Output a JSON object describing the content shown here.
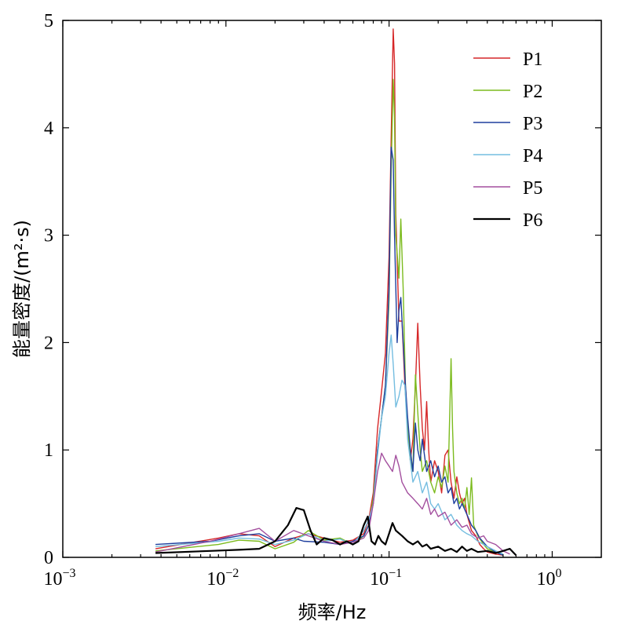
{
  "chart_data": {
    "type": "line",
    "title": "",
    "xlabel": "频率/Hz",
    "ylabel": "能量密度/(m²·s)",
    "xscale": "log",
    "xlim": [
      0.001,
      2
    ],
    "ylim": [
      0,
      5
    ],
    "xticks": [
      {
        "value": 0.001,
        "base": "10",
        "exp": "−3"
      },
      {
        "value": 0.01,
        "base": "10",
        "exp": "−2"
      },
      {
        "value": 0.1,
        "base": "10",
        "exp": "−1"
      },
      {
        "value": 1,
        "base": "10",
        "exp": "0"
      }
    ],
    "yticks": [
      0,
      1,
      2,
      3,
      4,
      5
    ],
    "grid": false,
    "legend_position": "top-right",
    "series": [
      {
        "name": "P1",
        "color": "#d62728",
        "points": [
          [
            0.0037,
            0.08
          ],
          [
            0.009,
            0.18
          ],
          [
            0.012,
            0.22
          ],
          [
            0.016,
            0.2
          ],
          [
            0.02,
            0.1
          ],
          [
            0.026,
            0.18
          ],
          [
            0.032,
            0.22
          ],
          [
            0.04,
            0.18
          ],
          [
            0.05,
            0.14
          ],
          [
            0.06,
            0.16
          ],
          [
            0.07,
            0.22
          ],
          [
            0.075,
            0.35
          ],
          [
            0.08,
            0.6
          ],
          [
            0.085,
            1.2
          ],
          [
            0.09,
            1.55
          ],
          [
            0.095,
            1.9
          ],
          [
            0.1,
            2.8
          ],
          [
            0.103,
            3.9
          ],
          [
            0.106,
            4.92
          ],
          [
            0.108,
            4.6
          ],
          [
            0.11,
            3.2
          ],
          [
            0.115,
            2.2
          ],
          [
            0.12,
            2.2
          ],
          [
            0.125,
            1.6
          ],
          [
            0.13,
            1.2
          ],
          [
            0.135,
            0.9
          ],
          [
            0.14,
            1.1
          ],
          [
            0.145,
            1.6
          ],
          [
            0.15,
            2.18
          ],
          [
            0.155,
            1.6
          ],
          [
            0.16,
            1.2
          ],
          [
            0.165,
            1.0
          ],
          [
            0.17,
            1.45
          ],
          [
            0.175,
            1.0
          ],
          [
            0.18,
            0.7
          ],
          [
            0.19,
            0.9
          ],
          [
            0.2,
            0.8
          ],
          [
            0.21,
            0.6
          ],
          [
            0.22,
            0.95
          ],
          [
            0.23,
            1.0
          ],
          [
            0.24,
            0.7
          ],
          [
            0.25,
            0.55
          ],
          [
            0.26,
            0.75
          ],
          [
            0.27,
            0.6
          ],
          [
            0.28,
            0.5
          ],
          [
            0.29,
            0.55
          ],
          [
            0.3,
            0.4
          ],
          [
            0.32,
            0.25
          ],
          [
            0.34,
            0.2
          ],
          [
            0.36,
            0.12
          ],
          [
            0.38,
            0.08
          ],
          [
            0.4,
            0.05
          ],
          [
            0.45,
            0.03
          ],
          [
            0.5,
            0.02
          ]
        ]
      },
      {
        "name": "P2",
        "color": "#7cbb1e",
        "points": [
          [
            0.0037,
            0.06
          ],
          [
            0.009,
            0.12
          ],
          [
            0.012,
            0.16
          ],
          [
            0.016,
            0.15
          ],
          [
            0.02,
            0.08
          ],
          [
            0.026,
            0.14
          ],
          [
            0.032,
            0.25
          ],
          [
            0.04,
            0.16
          ],
          [
            0.05,
            0.18
          ],
          [
            0.06,
            0.12
          ],
          [
            0.07,
            0.2
          ],
          [
            0.075,
            0.3
          ],
          [
            0.08,
            0.55
          ],
          [
            0.085,
            1.0
          ],
          [
            0.09,
            1.3
          ],
          [
            0.095,
            1.6
          ],
          [
            0.1,
            2.4
          ],
          [
            0.103,
            3.6
          ],
          [
            0.106,
            4.45
          ],
          [
            0.108,
            4.1
          ],
          [
            0.11,
            3.0
          ],
          [
            0.115,
            2.6
          ],
          [
            0.118,
            3.15
          ],
          [
            0.122,
            2.5
          ],
          [
            0.126,
            1.6
          ],
          [
            0.13,
            1.2
          ],
          [
            0.135,
            0.9
          ],
          [
            0.14,
            0.8
          ],
          [
            0.145,
            1.7
          ],
          [
            0.15,
            1.35
          ],
          [
            0.155,
            1.0
          ],
          [
            0.16,
            0.8
          ],
          [
            0.17,
            0.9
          ],
          [
            0.18,
            0.7
          ],
          [
            0.19,
            0.6
          ],
          [
            0.2,
            0.75
          ],
          [
            0.21,
            0.65
          ],
          [
            0.22,
            0.85
          ],
          [
            0.23,
            0.7
          ],
          [
            0.24,
            1.85
          ],
          [
            0.245,
            1.2
          ],
          [
            0.25,
            0.8
          ],
          [
            0.26,
            0.6
          ],
          [
            0.27,
            0.5
          ],
          [
            0.28,
            0.55
          ],
          [
            0.29,
            0.45
          ],
          [
            0.3,
            0.65
          ],
          [
            0.31,
            0.4
          ],
          [
            0.32,
            0.74
          ],
          [
            0.33,
            0.3
          ],
          [
            0.35,
            0.2
          ],
          [
            0.38,
            0.12
          ],
          [
            0.4,
            0.08
          ],
          [
            0.45,
            0.05
          ],
          [
            0.5,
            0.02
          ]
        ]
      },
      {
        "name": "P3",
        "color": "#1f3f9e",
        "points": [
          [
            0.0037,
            0.12
          ],
          [
            0.008,
            0.15
          ],
          [
            0.012,
            0.2
          ],
          [
            0.016,
            0.22
          ],
          [
            0.02,
            0.15
          ],
          [
            0.026,
            0.18
          ],
          [
            0.03,
            0.15
          ],
          [
            0.04,
            0.14
          ],
          [
            0.05,
            0.12
          ],
          [
            0.06,
            0.15
          ],
          [
            0.07,
            0.2
          ],
          [
            0.075,
            0.3
          ],
          [
            0.08,
            0.5
          ],
          [
            0.085,
            1.0
          ],
          [
            0.09,
            1.3
          ],
          [
            0.095,
            1.6
          ],
          [
            0.1,
            2.5
          ],
          [
            0.103,
            3.82
          ],
          [
            0.106,
            3.7
          ],
          [
            0.108,
            3.0
          ],
          [
            0.112,
            2.0
          ],
          [
            0.115,
            2.3
          ],
          [
            0.118,
            2.42
          ],
          [
            0.122,
            2.0
          ],
          [
            0.126,
            1.6
          ],
          [
            0.13,
            1.3
          ],
          [
            0.135,
            1.0
          ],
          [
            0.14,
            0.8
          ],
          [
            0.145,
            1.25
          ],
          [
            0.15,
            1.0
          ],
          [
            0.155,
            0.9
          ],
          [
            0.16,
            1.1
          ],
          [
            0.17,
            0.8
          ],
          [
            0.18,
            0.9
          ],
          [
            0.19,
            0.75
          ],
          [
            0.2,
            0.85
          ],
          [
            0.21,
            0.7
          ],
          [
            0.22,
            0.75
          ],
          [
            0.23,
            0.6
          ],
          [
            0.24,
            0.65
          ],
          [
            0.25,
            0.5
          ],
          [
            0.26,
            0.55
          ],
          [
            0.27,
            0.45
          ],
          [
            0.28,
            0.5
          ],
          [
            0.3,
            0.4
          ],
          [
            0.32,
            0.3
          ],
          [
            0.34,
            0.25
          ],
          [
            0.36,
            0.18
          ],
          [
            0.4,
            0.1
          ],
          [
            0.45,
            0.05
          ],
          [
            0.5,
            0.02
          ]
        ]
      },
      {
        "name": "P4",
        "color": "#74bde0",
        "points": [
          [
            0.0037,
            0.1
          ],
          [
            0.009,
            0.15
          ],
          [
            0.012,
            0.18
          ],
          [
            0.016,
            0.17
          ],
          [
            0.02,
            0.12
          ],
          [
            0.026,
            0.16
          ],
          [
            0.032,
            0.22
          ],
          [
            0.04,
            0.15
          ],
          [
            0.05,
            0.17
          ],
          [
            0.06,
            0.12
          ],
          [
            0.07,
            0.25
          ],
          [
            0.075,
            0.35
          ],
          [
            0.08,
            0.5
          ],
          [
            0.085,
            0.95
          ],
          [
            0.09,
            1.3
          ],
          [
            0.095,
            1.5
          ],
          [
            0.1,
            1.9
          ],
          [
            0.103,
            2.07
          ],
          [
            0.106,
            1.8
          ],
          [
            0.11,
            1.4
          ],
          [
            0.115,
            1.5
          ],
          [
            0.12,
            1.65
          ],
          [
            0.125,
            1.6
          ],
          [
            0.13,
            1.1
          ],
          [
            0.135,
            0.9
          ],
          [
            0.14,
            0.7
          ],
          [
            0.15,
            0.8
          ],
          [
            0.16,
            0.6
          ],
          [
            0.17,
            0.7
          ],
          [
            0.18,
            0.5
          ],
          [
            0.19,
            0.45
          ],
          [
            0.2,
            0.5
          ],
          [
            0.22,
            0.35
          ],
          [
            0.24,
            0.4
          ],
          [
            0.26,
            0.3
          ],
          [
            0.28,
            0.25
          ],
          [
            0.3,
            0.22
          ],
          [
            0.32,
            0.2
          ],
          [
            0.35,
            0.15
          ],
          [
            0.38,
            0.12
          ],
          [
            0.4,
            0.1
          ],
          [
            0.45,
            0.06
          ],
          [
            0.5,
            0.03
          ]
        ]
      },
      {
        "name": "P5",
        "color": "#a34f9e",
        "points": [
          [
            0.0037,
            0.05
          ],
          [
            0.008,
            0.15
          ],
          [
            0.012,
            0.22
          ],
          [
            0.016,
            0.27
          ],
          [
            0.02,
            0.15
          ],
          [
            0.026,
            0.25
          ],
          [
            0.032,
            0.2
          ],
          [
            0.04,
            0.15
          ],
          [
            0.05,
            0.12
          ],
          [
            0.06,
            0.14
          ],
          [
            0.07,
            0.18
          ],
          [
            0.075,
            0.25
          ],
          [
            0.08,
            0.5
          ],
          [
            0.085,
            0.8
          ],
          [
            0.09,
            0.97
          ],
          [
            0.095,
            0.9
          ],
          [
            0.1,
            0.85
          ],
          [
            0.105,
            0.8
          ],
          [
            0.11,
            0.95
          ],
          [
            0.115,
            0.85
          ],
          [
            0.12,
            0.7
          ],
          [
            0.13,
            0.6
          ],
          [
            0.14,
            0.55
          ],
          [
            0.15,
            0.5
          ],
          [
            0.16,
            0.45
          ],
          [
            0.17,
            0.55
          ],
          [
            0.18,
            0.4
          ],
          [
            0.19,
            0.45
          ],
          [
            0.2,
            0.38
          ],
          [
            0.22,
            0.42
          ],
          [
            0.24,
            0.3
          ],
          [
            0.26,
            0.35
          ],
          [
            0.28,
            0.28
          ],
          [
            0.3,
            0.3
          ],
          [
            0.32,
            0.22
          ],
          [
            0.35,
            0.18
          ],
          [
            0.38,
            0.2
          ],
          [
            0.4,
            0.15
          ],
          [
            0.45,
            0.12
          ],
          [
            0.5,
            0.06
          ],
          [
            0.55,
            0.03
          ]
        ]
      },
      {
        "name": "P6",
        "color": "#000000",
        "points": [
          [
            0.0037,
            0.04
          ],
          [
            0.008,
            0.06
          ],
          [
            0.012,
            0.07
          ],
          [
            0.016,
            0.08
          ],
          [
            0.02,
            0.15
          ],
          [
            0.024,
            0.3
          ],
          [
            0.027,
            0.46
          ],
          [
            0.03,
            0.44
          ],
          [
            0.033,
            0.25
          ],
          [
            0.036,
            0.12
          ],
          [
            0.04,
            0.18
          ],
          [
            0.045,
            0.16
          ],
          [
            0.05,
            0.12
          ],
          [
            0.055,
            0.15
          ],
          [
            0.06,
            0.12
          ],
          [
            0.065,
            0.15
          ],
          [
            0.07,
            0.3
          ],
          [
            0.074,
            0.38
          ],
          [
            0.078,
            0.15
          ],
          [
            0.082,
            0.12
          ],
          [
            0.086,
            0.2
          ],
          [
            0.09,
            0.15
          ],
          [
            0.095,
            0.12
          ],
          [
            0.1,
            0.22
          ],
          [
            0.105,
            0.32
          ],
          [
            0.11,
            0.25
          ],
          [
            0.12,
            0.2
          ],
          [
            0.13,
            0.15
          ],
          [
            0.14,
            0.12
          ],
          [
            0.15,
            0.15
          ],
          [
            0.16,
            0.1
          ],
          [
            0.17,
            0.12
          ],
          [
            0.18,
            0.08
          ],
          [
            0.2,
            0.1
          ],
          [
            0.22,
            0.06
          ],
          [
            0.24,
            0.08
          ],
          [
            0.26,
            0.05
          ],
          [
            0.28,
            0.1
          ],
          [
            0.3,
            0.06
          ],
          [
            0.32,
            0.08
          ],
          [
            0.35,
            0.05
          ],
          [
            0.4,
            0.06
          ],
          [
            0.45,
            0.04
          ],
          [
            0.5,
            0.06
          ],
          [
            0.55,
            0.08
          ],
          [
            0.6,
            0.02
          ]
        ]
      }
    ]
  }
}
